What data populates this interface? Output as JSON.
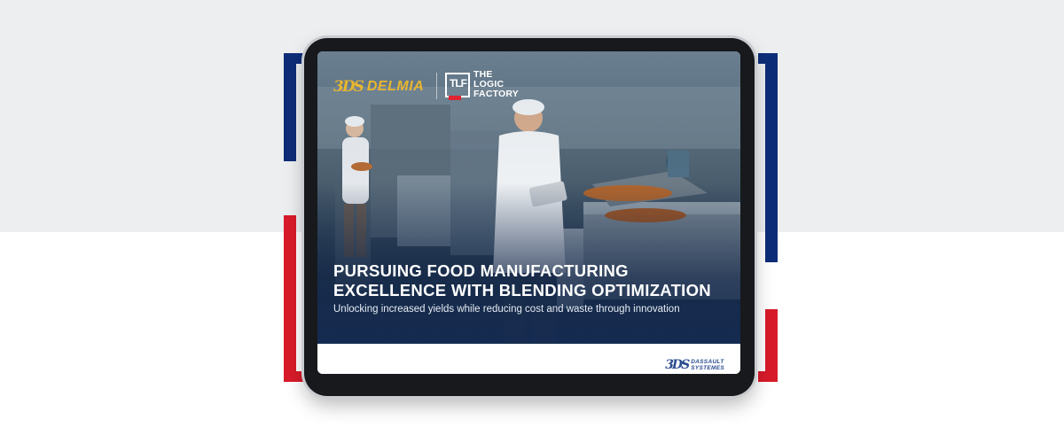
{
  "cover": {
    "headline_line1": "PURSUING FOOD MANUFACTURING",
    "headline_line2": "EXCELLENCE WITH BLENDING OPTIMIZATION",
    "subtitle": "Unlocking increased yields while reducing cost and waste through innovation"
  },
  "logos": {
    "delmia": {
      "mark": "3DS",
      "text": "DELMIA"
    },
    "logic_factory": {
      "box": "TLF",
      "line1": "THE",
      "line2": "LOGIC",
      "line3": "FACTORY"
    },
    "dassault": {
      "mark": "3DS",
      "line1": "DASSAULT",
      "line2": "SYSTEMES"
    }
  },
  "colors": {
    "brand_blue": "#0e2d78",
    "brand_red": "#d81b2a",
    "delmia_gold": "#e8b630",
    "page_gray": "#eceef0"
  }
}
